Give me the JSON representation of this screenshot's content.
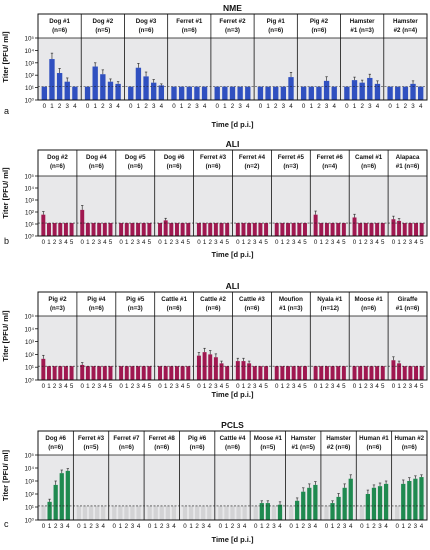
{
  "figure_meta": {
    "y_tick_labels": [
      "10⁰",
      "10¹",
      "10²",
      "10³",
      "10⁴",
      "10⁵"
    ],
    "colors": {
      "NME": "#3050c0",
      "ALI": "#a01850",
      "PCLS": "#1f8a50",
      "cell_bg": "#e8e8ea",
      "grey_bar": "#d3d3d5",
      "err": "#333333"
    }
  },
  "chart_data": [
    {
      "type": "bar",
      "panel_letter": "a",
      "title": "NME",
      "ylabel": "Titer [PFU/ ml]",
      "xlabel": "Time [d p.i.]",
      "y_scale": "log",
      "ylim": [
        1,
        100000
      ],
      "detection_limit": 12,
      "subgroups": [
        {
          "label": "Dog #1\n(n=6)",
          "x": [
            "0",
            "1",
            "2",
            "3",
            "4"
          ],
          "values": [
            12,
            2000,
            150,
            30,
            12
          ],
          "errors": [
            0,
            4000,
            200,
            30,
            0
          ]
        },
        {
          "label": "Dog #2\n(n=5)",
          "x": [
            "0",
            "1",
            "2",
            "3",
            "4"
          ],
          "values": [
            12,
            500,
            120,
            30,
            20
          ],
          "errors": [
            0,
            500,
            150,
            20,
            10
          ]
        },
        {
          "label": "Dog #3\n(n=6)",
          "x": [
            "0",
            "1",
            "2",
            "3",
            "4"
          ],
          "values": [
            12,
            400,
            80,
            25,
            15
          ],
          "errors": [
            0,
            500,
            100,
            20,
            5
          ]
        },
        {
          "label": "Ferret #1\n(n=6)",
          "x": [
            "0",
            "1",
            "2",
            "3",
            "4"
          ],
          "values": [
            12,
            12,
            12,
            12,
            12
          ],
          "errors": [
            0,
            0,
            0,
            0,
            0
          ]
        },
        {
          "label": "Ferret #2\n(n=3)",
          "x": [
            "0",
            "1",
            "2",
            "3",
            "4"
          ],
          "values": [
            12,
            12,
            12,
            12,
            12
          ],
          "errors": [
            0,
            0,
            0,
            0,
            0
          ]
        },
        {
          "label": "Pig #1\n(n=6)",
          "x": [
            "0",
            "1",
            "2",
            "3",
            "4"
          ],
          "values": [
            12,
            12,
            12,
            12,
            70
          ],
          "errors": [
            0,
            0,
            0,
            0,
            100
          ]
        },
        {
          "label": "Pig #2\n(n=6)",
          "x": [
            "0",
            "1",
            "2",
            "3",
            "4"
          ],
          "values": [
            12,
            12,
            12,
            35,
            12
          ],
          "errors": [
            0,
            0,
            0,
            40,
            0
          ]
        },
        {
          "label": "Hamster\n#1 (n=3)",
          "x": [
            "0",
            "1",
            "2",
            "3",
            "4"
          ],
          "values": [
            12,
            40,
            25,
            60,
            20
          ],
          "errors": [
            0,
            30,
            15,
            60,
            15
          ]
        },
        {
          "label": "Hamster\n#2 (n=4)",
          "x": [
            "0",
            "1",
            "2",
            "3",
            "4"
          ],
          "values": [
            12,
            12,
            12,
            20,
            12
          ],
          "errors": [
            0,
            0,
            0,
            15,
            0
          ]
        }
      ]
    },
    {
      "type": "bar",
      "panel_letter": "b",
      "title": "ALI",
      "ylabel": "Titer [PFU/ ml]",
      "xlabel": "Time [d p.i.]",
      "y_scale": "log",
      "ylim": [
        1,
        100000
      ],
      "detection_limit": 12,
      "subgroups": [
        {
          "label": "Dog #2\n(n=6)",
          "x": [
            "0",
            "1",
            "2",
            "3",
            "4",
            "5"
          ],
          "values": [
            60,
            12,
            12,
            12,
            12,
            12
          ],
          "errors": [
            50,
            0,
            0,
            0,
            0,
            0
          ]
        },
        {
          "label": "Dog #4\n(n=6)",
          "x": [
            "0",
            "1",
            "2",
            "3",
            "4",
            "5"
          ],
          "values": [
            150,
            12,
            12,
            12,
            12,
            12
          ],
          "errors": [
            200,
            0,
            0,
            0,
            0,
            0
          ]
        },
        {
          "label": "Dog #5\n(n=6)",
          "x": [
            "0",
            "1",
            "2",
            "3",
            "4",
            "5"
          ],
          "values": [
            12,
            12,
            12,
            12,
            12,
            12
          ],
          "errors": [
            0,
            0,
            0,
            0,
            0,
            0
          ]
        },
        {
          "label": "Dog #6\n(n=6)",
          "x": [
            "0",
            "1",
            "2",
            "3",
            "4",
            "5"
          ],
          "values": [
            12,
            20,
            12,
            12,
            12,
            12
          ],
          "errors": [
            0,
            10,
            0,
            0,
            0,
            0
          ]
        },
        {
          "label": "Ferret #3\n(n=6)",
          "x": [
            "0",
            "1",
            "2",
            "3",
            "4",
            "5"
          ],
          "values": [
            12,
            12,
            12,
            12,
            12,
            12
          ],
          "errors": [
            0,
            0,
            0,
            0,
            0,
            0
          ]
        },
        {
          "label": "Ferret #4\n(n=2)",
          "x": [
            "0",
            "1",
            "2",
            "3",
            "4",
            "5"
          ],
          "values": [
            12,
            12,
            12,
            12,
            12,
            12
          ],
          "errors": [
            0,
            0,
            0,
            0,
            0,
            0
          ]
        },
        {
          "label": "Ferret #5\n(n=3)",
          "x": [
            "0",
            "1",
            "2",
            "3",
            "4",
            "5"
          ],
          "values": [
            12,
            12,
            12,
            12,
            12,
            12
          ],
          "errors": [
            0,
            0,
            0,
            0,
            0,
            0
          ]
        },
        {
          "label": "Ferret #6\n(n=4)",
          "x": [
            "0",
            "1",
            "2",
            "3",
            "4",
            "5"
          ],
          "values": [
            60,
            12,
            12,
            12,
            12,
            12
          ],
          "errors": [
            60,
            0,
            0,
            0,
            0,
            0
          ]
        },
        {
          "label": "Camel #1\n(n=6)",
          "x": [
            "0",
            "1",
            "2",
            "3",
            "4",
            "5"
          ],
          "values": [
            35,
            12,
            12,
            12,
            12,
            12
          ],
          "errors": [
            30,
            0,
            0,
            0,
            0,
            0
          ]
        },
        {
          "label": "Alapaca\n#1 (n=6)",
          "x": [
            "0",
            "1",
            "2",
            "3",
            "4",
            "5"
          ],
          "values": [
            25,
            18,
            12,
            12,
            12,
            12
          ],
          "errors": [
            20,
            10,
            0,
            0,
            0,
            0
          ]
        }
      ]
    },
    {
      "type": "bar",
      "panel_letter": "",
      "title": "ALI",
      "ylabel": "Titer [PFU/ ml]",
      "xlabel": "Time [d p.i.]",
      "y_scale": "log",
      "ylim": [
        1,
        100000
      ],
      "detection_limit": 12,
      "subgroups": [
        {
          "label": "Pig #2\n(n=3)",
          "x": [
            "0",
            "1",
            "2",
            "3",
            "4",
            "5"
          ],
          "values": [
            45,
            12,
            12,
            12,
            12,
            12
          ],
          "errors": [
            40,
            0,
            0,
            0,
            0,
            0
          ]
        },
        {
          "label": "Pig #4\n(n=6)",
          "x": [
            "0",
            "1",
            "2",
            "3",
            "4",
            "5"
          ],
          "values": [
            15,
            12,
            12,
            12,
            12,
            12
          ],
          "errors": [
            8,
            0,
            0,
            0,
            0,
            0
          ]
        },
        {
          "label": "Pig #5\n(n=3)",
          "x": [
            "0",
            "1",
            "2",
            "3",
            "4",
            "5"
          ],
          "values": [
            12,
            12,
            12,
            12,
            12,
            12
          ],
          "errors": [
            0,
            0,
            0,
            0,
            0,
            0
          ]
        },
        {
          "label": "Cattle #1\n(n=6)",
          "x": [
            "0",
            "1",
            "2",
            "3",
            "4",
            "5"
          ],
          "values": [
            12,
            12,
            12,
            12,
            12,
            12
          ],
          "errors": [
            0,
            0,
            0,
            0,
            0,
            0
          ]
        },
        {
          "label": "Cattle #2\n(n=6)",
          "x": [
            "0",
            "1",
            "2",
            "3",
            "4",
            "5"
          ],
          "values": [
            80,
            150,
            100,
            60,
            20,
            12
          ],
          "errors": [
            60,
            150,
            100,
            50,
            10,
            0
          ]
        },
        {
          "label": "Cattle #3\n(n=6)",
          "x": [
            "0",
            "1",
            "2",
            "3",
            "4",
            "5"
          ],
          "values": [
            30,
            30,
            20,
            12,
            12,
            12
          ],
          "errors": [
            20,
            20,
            10,
            0,
            0,
            0
          ]
        },
        {
          "label": "Moufion\n#1 (n=3)",
          "x": [
            "0",
            "1",
            "2",
            "3",
            "4",
            "5"
          ],
          "values": [
            12,
            12,
            12,
            12,
            12,
            12
          ],
          "errors": [
            0,
            0,
            0,
            0,
            0,
            0
          ]
        },
        {
          "label": "Nyala #1\n(n=12)",
          "x": [
            "0",
            "1",
            "2",
            "3",
            "4",
            "5"
          ],
          "values": [
            12,
            12,
            12,
            12,
            12,
            12
          ],
          "errors": [
            0,
            0,
            0,
            0,
            0,
            0
          ]
        },
        {
          "label": "Moose #1\n(n=6)",
          "x": [
            "0",
            "1",
            "2",
            "3",
            "4",
            "5"
          ],
          "values": [
            12,
            12,
            12,
            12,
            12,
            12
          ],
          "errors": [
            0,
            0,
            0,
            0,
            0,
            0
          ]
        },
        {
          "label": "Giraffe\n#1 (n=6)",
          "x": [
            "0",
            "1",
            "2",
            "3",
            "4",
            "5"
          ],
          "values": [
            35,
            20,
            12,
            12,
            12,
            12
          ],
          "errors": [
            30,
            10,
            0,
            0,
            0,
            0
          ]
        }
      ]
    },
    {
      "type": "bar",
      "panel_letter": "c",
      "title": "PCLS",
      "ylabel": "Titer [PFU/ ml]",
      "xlabel": "Time [d p.i.]",
      "y_scale": "log",
      "ylim": [
        1,
        100000
      ],
      "detection_limit": 12,
      "subgroups": [
        {
          "label": "Dog #6\n(n=6)",
          "x": [
            "0",
            "1",
            "2",
            "3",
            "4"
          ],
          "values": [
            12,
            25,
            500,
            4000,
            6000
          ],
          "errors": [
            0,
            15,
            500,
            3000,
            3000
          ]
        },
        {
          "label": "Ferret #3\n(n=5)",
          "x": [
            "0",
            "1",
            "2",
            "3",
            "4"
          ],
          "values": [
            12,
            12,
            12,
            12,
            12
          ],
          "errors": [
            0,
            0,
            0,
            0,
            0
          ]
        },
        {
          "label": "Ferret #7\n(n=6)",
          "x": [
            "0",
            "1",
            "2",
            "3",
            "4"
          ],
          "values": [
            12,
            12,
            12,
            12,
            12
          ],
          "errors": [
            0,
            0,
            0,
            0,
            0
          ]
        },
        {
          "label": "Ferret #8\n(n=6)",
          "x": [
            "0",
            "1",
            "2",
            "3",
            "4"
          ],
          "values": [
            12,
            12,
            12,
            12,
            12
          ],
          "errors": [
            0,
            0,
            0,
            0,
            0
          ]
        },
        {
          "label": "Pig #6\n(n=6)",
          "x": [
            "0",
            "1",
            "2",
            "3",
            "4"
          ],
          "values": [
            12,
            12,
            12,
            12,
            12
          ],
          "errors": [
            0,
            0,
            0,
            0,
            0
          ]
        },
        {
          "label": "Cattle #4\n(n=6)",
          "x": [
            "0",
            "1",
            "2",
            "3",
            "4"
          ],
          "values": [
            12,
            12,
            12,
            12,
            12
          ],
          "errors": [
            0,
            0,
            0,
            0,
            0
          ]
        },
        {
          "label": "Moose #1\n(n=5)",
          "x": [
            "0",
            "1",
            "2",
            "3",
            "4"
          ],
          "values": [
            12,
            20,
            20,
            12,
            15
          ],
          "errors": [
            0,
            10,
            10,
            0,
            10
          ]
        },
        {
          "label": "Hamster\n#1 (n=5)",
          "x": [
            "0",
            "1",
            "2",
            "3",
            "4"
          ],
          "values": [
            12,
            30,
            150,
            300,
            500
          ],
          "errors": [
            0,
            20,
            150,
            300,
            400
          ]
        },
        {
          "label": "Hamster\n#2 (n=6)",
          "x": [
            "0",
            "1",
            "2",
            "3",
            "4"
          ],
          "values": [
            12,
            20,
            60,
            300,
            1500
          ],
          "errors": [
            0,
            10,
            50,
            300,
            1500
          ]
        },
        {
          "label": "Human #1\n(n=6)",
          "x": [
            "0",
            "1",
            "2",
            "3",
            "4"
          ],
          "values": [
            12,
            100,
            300,
            400,
            600
          ],
          "errors": [
            0,
            100,
            200,
            300,
            400
          ]
        },
        {
          "label": "Human #2\n(n=6)",
          "x": [
            "0",
            "1",
            "2",
            "3",
            "4"
          ],
          "values": [
            12,
            600,
            1000,
            1500,
            2000
          ],
          "errors": [
            0,
            600,
            800,
            1000,
            1000
          ]
        }
      ]
    }
  ]
}
